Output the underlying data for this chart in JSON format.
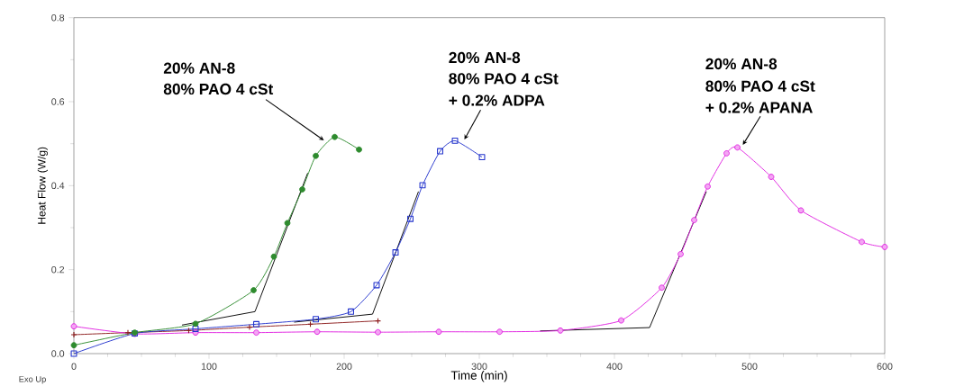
{
  "chart_data": {
    "type": "line",
    "xlabel": "Time (min)",
    "ylabel": "Heat Flow (W/g)",
    "xlim": [
      0,
      600
    ],
    "ylim": [
      0,
      0.8
    ],
    "xticks": [
      0,
      100,
      200,
      300,
      400,
      500,
      600
    ],
    "yticks": [
      {
        "value": 0,
        "label": "0.0"
      },
      {
        "value": 0.2,
        "label": "0.2"
      },
      {
        "value": 0.4,
        "label": "0.4"
      },
      {
        "value": 0.6,
        "label": "0.6"
      },
      {
        "value": 0.8,
        "label": "0.8"
      }
    ],
    "grid": false,
    "line_style": "solid",
    "series": [
      {
        "color": "#2e8b2e",
        "marker": "circle",
        "x": [
          0,
          45,
          90,
          133,
          148,
          158,
          169,
          179,
          193,
          211
        ],
        "values": [
          0.02,
          0.05,
          0.071,
          0.151,
          0.231,
          0.311,
          0.391,
          0.471,
          0.516,
          0.486
        ]
      },
      {
        "color": "#2233cc",
        "marker": "square",
        "x": [
          0,
          45,
          90,
          135,
          179,
          205,
          224,
          238,
          249,
          258,
          271,
          282,
          302
        ],
        "values": [
          0.0,
          0.048,
          0.059,
          0.07,
          0.082,
          0.1,
          0.163,
          0.241,
          0.321,
          0.401,
          0.482,
          0.507,
          0.468
        ]
      },
      {
        "color": "#e020e0",
        "marker": "circle",
        "x": [
          0,
          45,
          90,
          135,
          180,
          225,
          270,
          315,
          360,
          405,
          435,
          449,
          459,
          469,
          483,
          491,
          516,
          538,
          583,
          600
        ],
        "values": [
          0.065,
          0.047,
          0.05,
          0.05,
          0.052,
          0.051,
          0.052,
          0.052,
          0.055,
          0.079,
          0.157,
          0.237,
          0.318,
          0.398,
          0.477,
          0.491,
          0.421,
          0.341,
          0.266,
          0.254
        ]
      },
      {
        "color": "#8b1a1a",
        "marker": "cross",
        "x": [
          0,
          40,
          85,
          130,
          175,
          225
        ],
        "values": [
          0.045,
          0.05,
          0.055,
          0.063,
          0.07,
          0.078
        ]
      },
      {
        "color": "#000000",
        "marker": "none",
        "x": [
          80,
          134,
          173
        ],
        "values": [
          0.068,
          0.1,
          0.43
        ]
      },
      {
        "color": "#000000",
        "marker": "none",
        "x": [
          163,
          221,
          255
        ],
        "values": [
          0.075,
          0.094,
          0.386
        ]
      },
      {
        "color": "#000000",
        "marker": "none",
        "x": [
          345,
          426,
          468
        ],
        "values": [
          0.054,
          0.062,
          0.386
        ]
      }
    ],
    "annotations": [
      "20% AN-8",
      "80% PAO 4 cSt",
      "20% AN-8",
      "80% PAO 4 cSt",
      "+ 0.2% ADPA",
      "20% AN-8",
      "80% PAO 4 cSt",
      "+ 0.2% APANA",
      "Exo Up"
    ]
  }
}
